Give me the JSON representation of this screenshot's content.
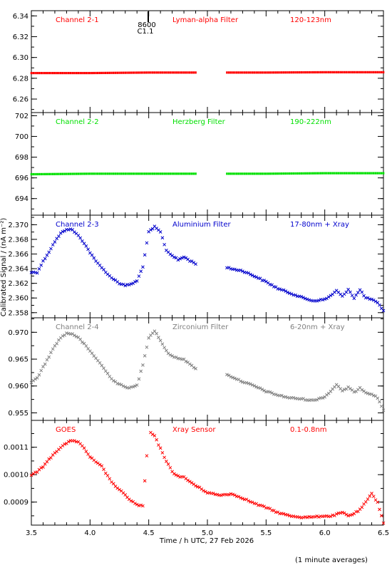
{
  "figure": {
    "ylabel": "Calibrated Signal / (nA m⁻²)",
    "xlabel": "Time / h UTC, 27 Feb 2026",
    "footnote": "(1 minute averages)",
    "top_axis_label_1": "8600",
    "top_axis_label_2": "C1.1"
  },
  "colors": {
    "red": "#ff0000",
    "green": "#00e000",
    "blue": "#0000cc",
    "gray": "#808080"
  },
  "chart_data": [
    {
      "type": "scatter",
      "labels": [
        "Channel 2-1",
        "Lyman-alpha Filter",
        "120-123nm"
      ],
      "ylim": [
        6.247,
        6.345
      ],
      "yticks": [
        6.26,
        6.28,
        6.3,
        6.32,
        6.34
      ],
      "ytick_labels": [
        "6.26",
        "6.28",
        "6.30",
        "6.32",
        "6.34"
      ],
      "xlim": [
        3.5,
        6.5
      ],
      "color": "#ff0000",
      "gap": [
        4.9,
        5.15
      ],
      "x": [
        3.5,
        4.0,
        4.5,
        4.9,
        5.15,
        5.5,
        6.0,
        6.5
      ],
      "y": [
        6.285,
        6.285,
        6.2855,
        6.2855,
        6.2855,
        6.2855,
        6.2858,
        6.2858
      ]
    },
    {
      "type": "scatter",
      "labels": [
        "Channel 2-2",
        "Herzberg Filter",
        "190-222nm"
      ],
      "ylim": [
        692.4,
        702.3
      ],
      "yticks": [
        694,
        696,
        698,
        700,
        702
      ],
      "ytick_labels": [
        "694",
        "696",
        "698",
        "700",
        "702"
      ],
      "xlim": [
        3.5,
        6.5
      ],
      "color": "#00e000",
      "gap": [
        4.9,
        5.15
      ],
      "x": [
        3.5,
        4.0,
        4.5,
        4.9,
        5.15,
        5.5,
        6.0,
        6.5
      ],
      "y": [
        696.35,
        696.4,
        696.4,
        696.4,
        696.4,
        696.4,
        696.45,
        696.45
      ]
    },
    {
      "type": "scatter",
      "labels": [
        "Channel 2-3",
        "Aluminium Filter",
        "17-80nm + Xray"
      ],
      "ylim": [
        2.3573,
        2.3713
      ],
      "yticks": [
        2.358,
        2.36,
        2.362,
        2.364,
        2.366,
        2.368,
        2.37
      ],
      "ytick_labels": [
        "2.358",
        "2.360",
        "2.362",
        "2.364",
        "2.366",
        "2.368",
        "2.370"
      ],
      "xlim": [
        3.5,
        6.5
      ],
      "color": "#0000cc",
      "gap": [
        4.9,
        5.15
      ],
      "x": [
        3.5,
        3.55,
        3.6,
        3.65,
        3.7,
        3.75,
        3.8,
        3.85,
        3.9,
        3.95,
        4.0,
        4.05,
        4.1,
        4.15,
        4.2,
        4.25,
        4.3,
        4.35,
        4.4,
        4.45,
        4.5,
        4.55,
        4.6,
        4.65,
        4.7,
        4.75,
        4.8,
        4.85,
        4.9,
        5.15,
        5.2,
        5.3,
        5.4,
        5.5,
        5.6,
        5.7,
        5.8,
        5.9,
        6.0,
        6.05,
        6.1,
        6.15,
        6.2,
        6.25,
        6.3,
        6.35,
        6.4,
        6.45,
        6.5
      ],
      "y": [
        2.3635,
        2.3635,
        2.365,
        2.3663,
        2.3677,
        2.3688,
        2.3694,
        2.3693,
        2.3685,
        2.3675,
        2.3662,
        2.365,
        2.3642,
        2.3632,
        2.3626,
        2.362,
        2.3617,
        2.3619,
        2.3623,
        2.3643,
        2.369,
        2.3697,
        2.369,
        2.3665,
        2.3658,
        2.3652,
        2.3656,
        2.3651,
        2.3647,
        2.3642,
        2.364,
        2.3637,
        2.363,
        2.3622,
        2.3613,
        2.3607,
        2.3601,
        2.3596,
        2.3598,
        2.3603,
        2.361,
        2.3602,
        2.3612,
        2.36,
        2.3611,
        2.36,
        2.3598,
        2.3593,
        2.3583
      ]
    },
    {
      "type": "scatter",
      "labels": [
        "Channel 2-4",
        "Zirconium Filter",
        "6-20nm + Xray"
      ],
      "ylim": [
        0.9536,
        0.9727
      ],
      "yticks": [
        0.955,
        0.96,
        0.965,
        0.97
      ],
      "ytick_labels": [
        "0.955",
        "0.960",
        "0.965",
        "0.970"
      ],
      "xlim": [
        3.5,
        6.5
      ],
      "color": "#808080",
      "gap": [
        4.9,
        5.15
      ],
      "x": [
        3.5,
        3.55,
        3.6,
        3.65,
        3.7,
        3.75,
        3.8,
        3.85,
        3.9,
        3.95,
        4.0,
        4.05,
        4.1,
        4.15,
        4.2,
        4.25,
        4.3,
        4.35,
        4.4,
        4.45,
        4.5,
        4.55,
        4.6,
        4.65,
        4.7,
        4.75,
        4.8,
        4.85,
        4.9,
        5.15,
        5.2,
        5.3,
        5.4,
        5.5,
        5.6,
        5.7,
        5.8,
        5.9,
        6.0,
        6.05,
        6.1,
        6.15,
        6.2,
        6.25,
        6.3,
        6.35,
        6.4,
        6.45,
        6.5
      ],
      "y": [
        0.9607,
        0.9615,
        0.9635,
        0.9655,
        0.9675,
        0.969,
        0.9698,
        0.9697,
        0.969,
        0.9678,
        0.9665,
        0.9652,
        0.9638,
        0.9623,
        0.961,
        0.9603,
        0.9598,
        0.9597,
        0.9601,
        0.964,
        0.969,
        0.9703,
        0.9685,
        0.9665,
        0.9655,
        0.9652,
        0.965,
        0.964,
        0.9633,
        0.9622,
        0.9618,
        0.9608,
        0.96,
        0.959,
        0.9583,
        0.9578,
        0.9576,
        0.9573,
        0.958,
        0.959,
        0.9603,
        0.959,
        0.9598,
        0.9588,
        0.9597,
        0.9588,
        0.9585,
        0.9578,
        0.9555
      ]
    },
    {
      "type": "scatter",
      "labels": [
        "GOES",
        "Xray Sensor",
        "0.1-0.8nm"
      ],
      "ylim": [
        0.000816,
        0.001198
      ],
      "yticks": [
        0.0009,
        0.001,
        0.0011
      ],
      "ytick_labels": [
        "0.0009",
        "0.0010",
        "0.0011"
      ],
      "xlim": [
        3.5,
        6.5
      ],
      "xticks": [
        3.5,
        4.0,
        4.5,
        5.0,
        5.5,
        6.0,
        6.5
      ],
      "xtick_labels": [
        "3.5",
        "4.0",
        "4.5",
        "5.0",
        "5.5",
        "6.0",
        "6.5"
      ],
      "color": "#ff0000",
      "gap": [
        4.49,
        4.5
      ],
      "x": [
        3.5,
        3.55,
        3.6,
        3.65,
        3.7,
        3.75,
        3.8,
        3.85,
        3.9,
        3.95,
        4.0,
        4.05,
        4.1,
        4.15,
        4.2,
        4.25,
        4.3,
        4.35,
        4.4,
        4.45,
        4.5,
        4.55,
        4.6,
        4.65,
        4.7,
        4.75,
        4.8,
        4.85,
        4.9,
        5.0,
        5.1,
        5.2,
        5.3,
        5.4,
        5.5,
        5.6,
        5.7,
        5.8,
        5.9,
        6.0,
        6.05,
        6.1,
        6.15,
        6.2,
        6.25,
        6.3,
        6.35,
        6.4,
        6.45,
        6.5
      ],
      "y": [
        0.001,
        0.00101,
        0.00103,
        0.001055,
        0.00108,
        0.0011,
        0.001115,
        0.001125,
        0.00112,
        0.001095,
        0.001065,
        0.001045,
        0.00103,
        0.000995,
        0.000965,
        0.000945,
        0.000925,
        0.000905,
        0.00089,
        0.000885,
        0.00116,
        0.00114,
        0.001095,
        0.00105,
        0.00101,
        0.000995,
        0.00099,
        0.000975,
        0.00096,
        0.000935,
        0.000925,
        0.00093,
        0.000915,
        0.000895,
        0.00088,
        0.000862,
        0.00085,
        0.000845,
        0.000845,
        0.00085,
        0.000848,
        0.000855,
        0.000862,
        0.00085,
        0.000858,
        0.000872,
        0.0009,
        0.00093,
        0.0009,
        0.000825
      ]
    }
  ]
}
